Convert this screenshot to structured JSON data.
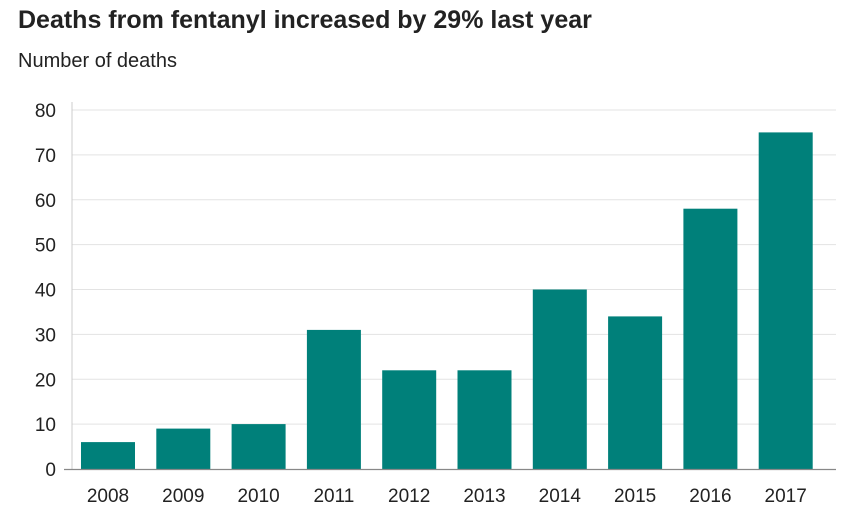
{
  "chart_data": {
    "type": "bar",
    "title": "Deaths from fentanyl increased by 29% last year",
    "subtitle": "Number of deaths",
    "xlabel": "",
    "ylabel": "",
    "categories": [
      "2008",
      "2009",
      "2010",
      "2011",
      "2012",
      "2013",
      "2014",
      "2015",
      "2016",
      "2017"
    ],
    "values": [
      6,
      9,
      10,
      31,
      22,
      22,
      40,
      34,
      58,
      75
    ],
    "ylim": [
      0,
      80
    ],
    "yticks": [
      0,
      10,
      20,
      30,
      40,
      50,
      60,
      70,
      80
    ],
    "grid": true,
    "legend": "none",
    "colors": {
      "bar": "#00807a",
      "grid": "#e3e3e3",
      "axis": "#888888",
      "text": "#222222"
    }
  }
}
